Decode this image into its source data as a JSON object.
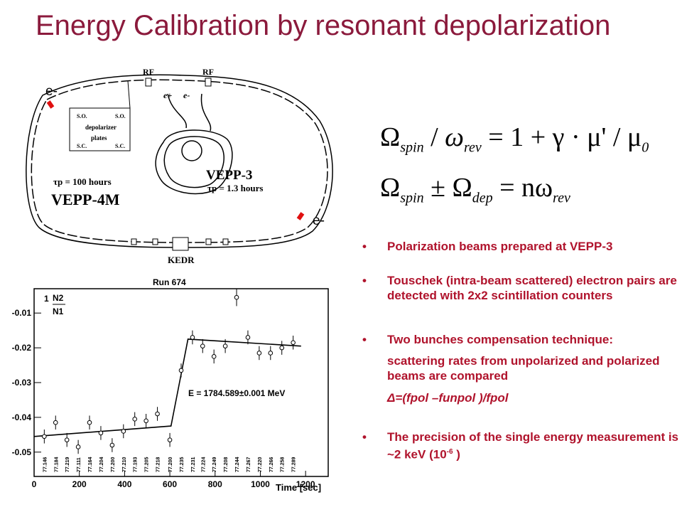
{
  "title": "Energy Calibration by resonant depolarization",
  "diagram": {
    "rf_label_1": "RF",
    "rf_label_2": "RF",
    "e_plus": "e+",
    "e_minus": "e-",
    "e_minus_top": "e-",
    "e_minus_right": "e-",
    "depolarizer_so_left": "S.O.",
    "depolarizer_so_right": "S.O.",
    "depolarizer_text": "depolarizer",
    "depolarizer_plates": "plates",
    "depolarizer_sc_left": "S.C.",
    "depolarizer_sc_right": "S.C.",
    "vepp4m_tau": "τp = 100 hours",
    "vepp4m_name": "VEPP-4M",
    "vepp3_name": "VEPP-3",
    "vepp3_tau": "τp = 1.3 hours",
    "kedr": "KEDR"
  },
  "formulas": {
    "eq1_lhs_big": "Ω",
    "eq1_lhs_sub": "spin",
    "eq1_slash": "/",
    "eq1_omega": "ω",
    "eq1_omega_sub": "rev",
    "eq1_rhs": "= 1 + γ · μ' / μ",
    "eq1_rhs_sub": "0",
    "eq2_big1": "Ω",
    "eq2_sub1": "spin",
    "eq2_pm": " ± ",
    "eq2_big2": "Ω",
    "eq2_sub2": "dep",
    "eq2_eq": " = nω",
    "eq2_sub3": "rev"
  },
  "bullets": {
    "b1": "Polarization beams prepared at VEPP-3",
    "b2": "Touschek (intra-beam scattered) electron pairs are detected with 2x2 scintillation counters",
    "b3": "Two bunches compensation technique:",
    "b3_sub1": "scattering rates from  unpolarized  and polarized  beams are compared",
    "b3_sub2": "Δ=(fpol –funpol )/fpol",
    "b4": "The precision  of the single energy measurement is ~2 keV (10",
    "b4_sup": "-6",
    "b4_end": " )",
    "bullet_glyph": "•"
  },
  "chart_data": {
    "type": "scatter",
    "title": "Run 674",
    "xlabel": "Time [sec]",
    "ylabel": "",
    "legend": [
      "N2",
      "N1"
    ],
    "legend_first_tick": "1",
    "annotation": "E = 1784.589±0.001 MeV",
    "xlim": [
      0,
      1300
    ],
    "ylim": [
      -0.057,
      -0.003
    ],
    "x_ticks": [
      0,
      200,
      400,
      600,
      800,
      1000,
      1200
    ],
    "x_tick_labels": [
      "0",
      "200",
      "400",
      "600",
      "800",
      "1000",
      "1200"
    ],
    "y_ticks": [
      -0.05,
      -0.04,
      -0.03,
      -0.02,
      -0.01
    ],
    "y_tick_labels": [
      "-0.05",
      "-0.04",
      "-0.03",
      "-0.02",
      "-0.01"
    ],
    "points": [
      {
        "x": 45,
        "y": -0.0455,
        "err": 0.002
      },
      {
        "x": 95,
        "y": -0.0415,
        "err": 0.002
      },
      {
        "x": 145,
        "y": -0.0465,
        "err": 0.002
      },
      {
        "x": 195,
        "y": -0.0485,
        "err": 0.002
      },
      {
        "x": 245,
        "y": -0.0415,
        "err": 0.002
      },
      {
        "x": 295,
        "y": -0.0445,
        "err": 0.002
      },
      {
        "x": 345,
        "y": -0.048,
        "err": 0.002
      },
      {
        "x": 395,
        "y": -0.044,
        "err": 0.002
      },
      {
        "x": 445,
        "y": -0.0405,
        "err": 0.002
      },
      {
        "x": 495,
        "y": -0.041,
        "err": 0.002
      },
      {
        "x": 545,
        "y": -0.039,
        "err": 0.002
      },
      {
        "x": 600,
        "y": -0.0465,
        "err": 0.002
      },
      {
        "x": 650,
        "y": -0.0265,
        "err": 0.002
      },
      {
        "x": 700,
        "y": -0.017,
        "err": 0.002
      },
      {
        "x": 745,
        "y": -0.0195,
        "err": 0.002
      },
      {
        "x": 795,
        "y": -0.0225,
        "err": 0.002
      },
      {
        "x": 845,
        "y": -0.0195,
        "err": 0.002
      },
      {
        "x": 895,
        "y": -0.0055,
        "err": 0.0025
      },
      {
        "x": 945,
        "y": -0.017,
        "err": 0.002
      },
      {
        "x": 995,
        "y": -0.0215,
        "err": 0.002
      },
      {
        "x": 1045,
        "y": -0.0215,
        "err": 0.002
      },
      {
        "x": 1095,
        "y": -0.02,
        "err": 0.002
      },
      {
        "x": 1145,
        "y": -0.0185,
        "err": 0.002
      }
    ],
    "fit_line": [
      {
        "x": 0,
        "y": -0.0455
      },
      {
        "x": 605,
        "y": -0.0425
      },
      {
        "x": 680,
        "y": -0.0175
      },
      {
        "x": 1180,
        "y": -0.0195
      }
    ],
    "vertical_labels": [
      "77.146",
      "77.184",
      "77.219",
      "77.111",
      "77.164",
      "77.204",
      "77.200",
      "77.210",
      "77.193",
      "77.205",
      "77.218",
      "77.200",
      "77.235",
      "77.231",
      "77.224",
      "77.249",
      "77.208",
      "77.244",
      "77.267",
      "77.220",
      "77.266",
      "77.258",
      "77.289"
    ],
    "colors": {
      "line": "#000000",
      "frame": "#000000"
    }
  }
}
